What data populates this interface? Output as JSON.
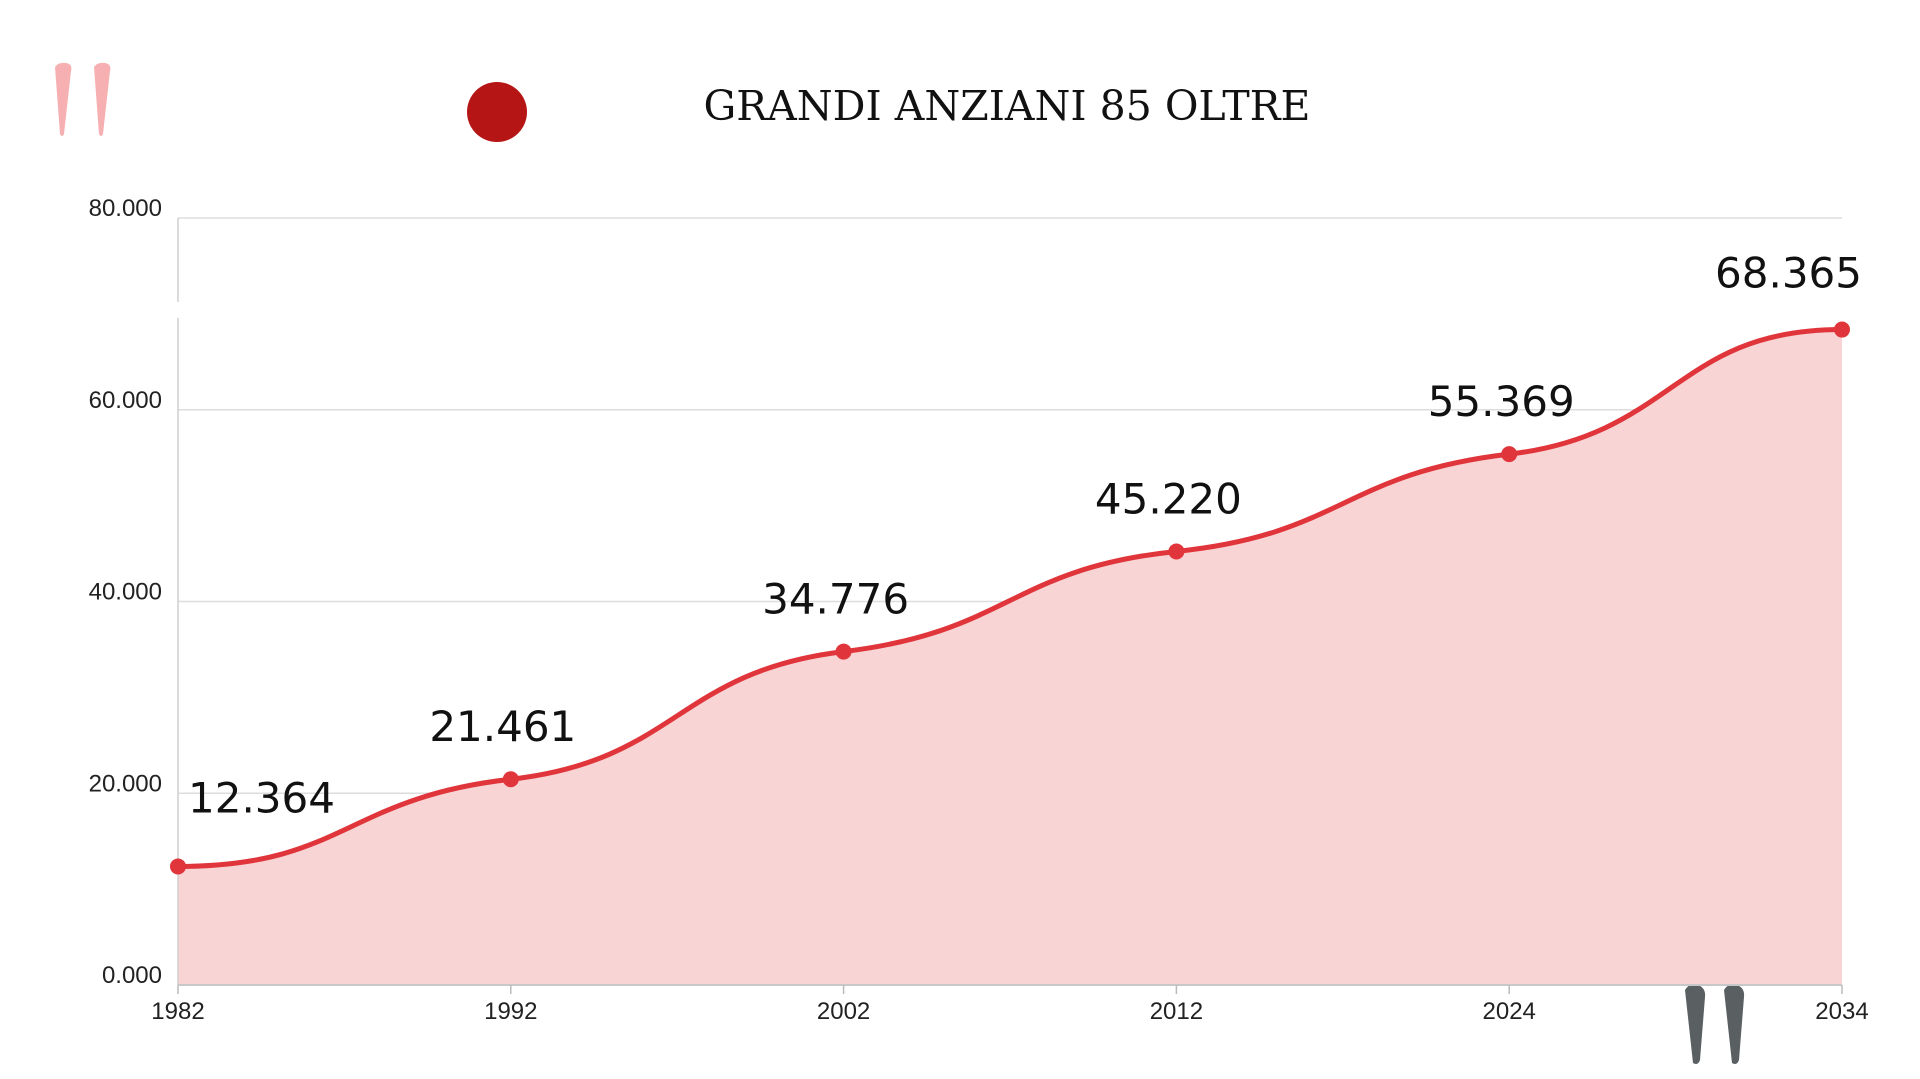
{
  "chart_data": {
    "type": "area",
    "title": "GRANDI ANZIANI 85 OLTRE",
    "x": [
      "1982",
      "1992",
      "2002",
      "2012",
      "2024",
      "2034"
    ],
    "values": [
      12364,
      21461,
      34776,
      45220,
      55369,
      68365
    ],
    "data_labels": [
      "12.364",
      "21.461",
      "34.776",
      "45.220",
      "55.369",
      "68.365"
    ],
    "y_ticks": [
      "0.000",
      "20.000",
      "40.000",
      "60.000",
      "80.000"
    ],
    "y_tick_values": [
      0,
      20000,
      40000,
      60000,
      80000
    ],
    "ylim": [
      0,
      80000
    ],
    "xlabel": "",
    "ylabel": "",
    "grid": true,
    "legend": "none",
    "colors": {
      "line": "#e0353a",
      "fill": "#f8d4d5",
      "grid": "#dddddd",
      "title_dot": "#b51515",
      "quote_left": "#f7b0b2",
      "quote_right": "#5a5f61"
    }
  },
  "decorations": {
    "quote_left_icon": "quote-open-icon",
    "quote_right_icon": "quote-close-icon",
    "title_dot_icon": "red-dot-icon"
  }
}
